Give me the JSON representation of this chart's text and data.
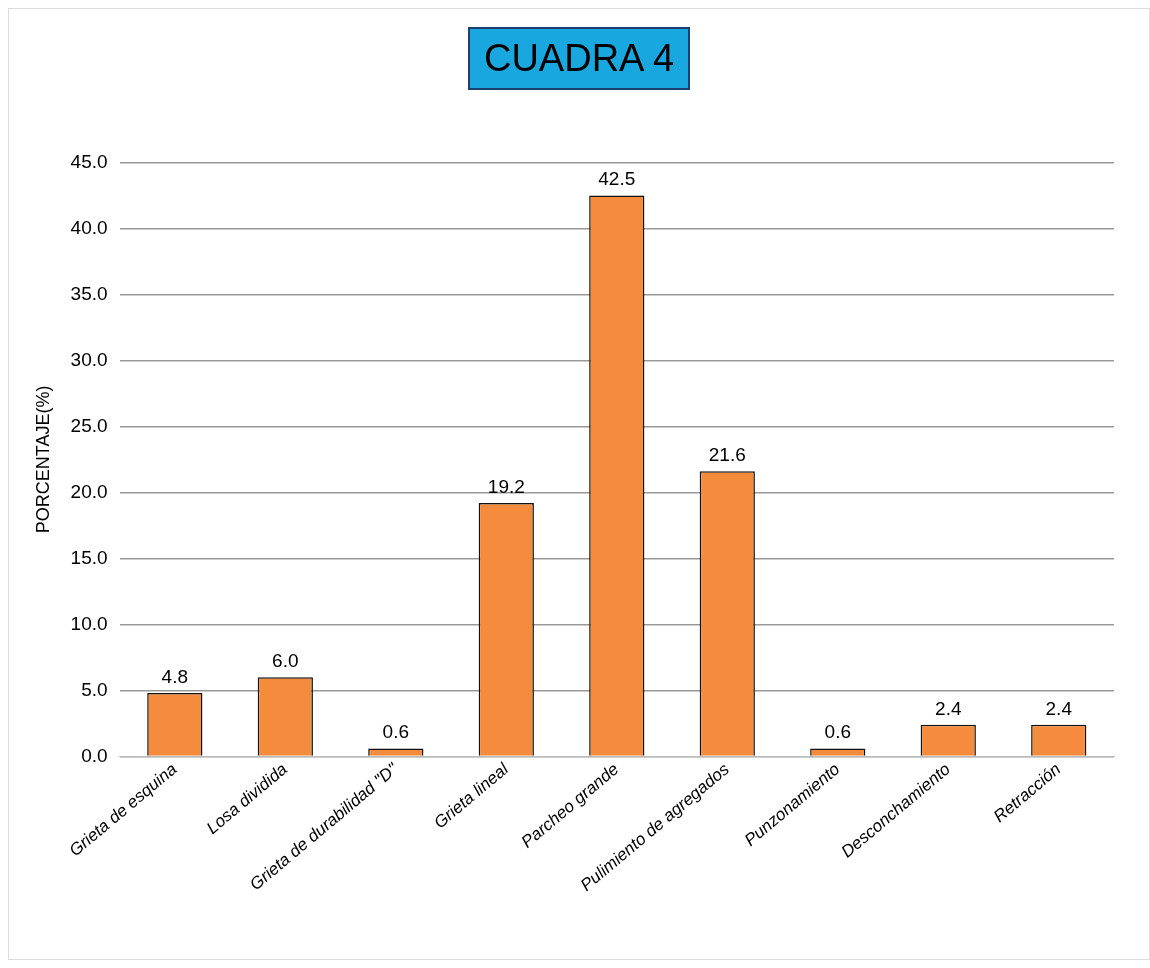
{
  "chart_data": {
    "type": "bar",
    "title": "CUADRA 4",
    "ylabel": "PORCENTAJE(%)",
    "categories": [
      "Grieta de esquina",
      "Losa dividida",
      "Grieta de durabilidad \"D\"",
      "Grieta lineal",
      "Parcheo grande",
      "Pulimiento de agregados",
      "Punzonamiento",
      "Desconchamiento",
      "Retracción"
    ],
    "values": [
      4.8,
      6.0,
      0.6,
      19.2,
      42.5,
      21.6,
      0.6,
      2.4,
      2.4
    ],
    "value_labels": [
      "4.8",
      "6.0",
      "0.6",
      "19.2",
      "42.5",
      "21.6",
      "0.6",
      "2.4",
      "2.4"
    ],
    "color": "#f58b3c",
    "ylim": [
      0,
      45
    ],
    "yticks": [
      {
        "value": 0,
        "label": "0.0"
      },
      {
        "value": 5,
        "label": "5.0"
      },
      {
        "value": 10,
        "label": "10.0"
      },
      {
        "value": 15,
        "label": "15.0"
      },
      {
        "value": 20,
        "label": "20.0"
      },
      {
        "value": 25,
        "label": "25.0"
      },
      {
        "value": 30,
        "label": "30.0"
      },
      {
        "value": 35,
        "label": "35.0"
      },
      {
        "value": 40,
        "label": "40.0"
      },
      {
        "value": 45,
        "label": "45.0"
      }
    ],
    "grid": "y",
    "legend": false
  }
}
